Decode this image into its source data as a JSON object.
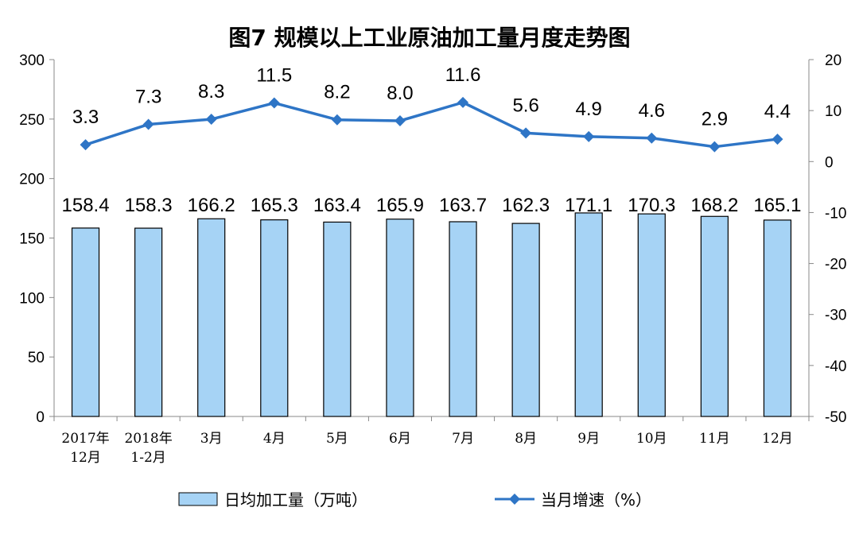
{
  "chart_data": {
    "type": "bar+line",
    "title": "图7  规模以上工业原油加工量月度走势图",
    "categories": [
      [
        "2017年",
        "12月"
      ],
      [
        "2018年",
        "1-2月"
      ],
      [
        "3月"
      ],
      [
        "4月"
      ],
      [
        "5月"
      ],
      [
        "6月"
      ],
      [
        "7月"
      ],
      [
        "8月"
      ],
      [
        "9月"
      ],
      [
        "10月"
      ],
      [
        "11月"
      ],
      [
        "12月"
      ]
    ],
    "series": [
      {
        "name": "日均加工量（万吨）",
        "type": "bar",
        "axis": "left",
        "color": "#a6d3f5",
        "values": [
          158.4,
          158.3,
          166.2,
          165.3,
          163.4,
          165.9,
          163.7,
          162.3,
          171.1,
          170.3,
          168.2,
          165.1
        ]
      },
      {
        "name": "当月增速（%）",
        "type": "line",
        "axis": "right",
        "color": "#2e75c6",
        "values": [
          3.3,
          7.3,
          8.3,
          11.5,
          8.2,
          8.0,
          11.6,
          5.6,
          4.9,
          4.6,
          2.9,
          4.4
        ]
      }
    ],
    "y_left": {
      "min": 0,
      "max": 300,
      "ticks": [
        "0",
        "50",
        "100",
        "150",
        "200",
        "250",
        "300"
      ]
    },
    "y_right": {
      "min": -50,
      "max": 20,
      "ticks": [
        "-50",
        "-40",
        "-30",
        "-20",
        "-10",
        "0",
        "10",
        "20"
      ]
    },
    "bar_labels": [
      "158.4",
      "158.3",
      "166.2",
      "165.3",
      "163.4",
      "165.9",
      "163.7",
      "162.3",
      "171.1",
      "170.3",
      "168.2",
      "165.1"
    ],
    "line_labels": [
      "3.3",
      "7.3",
      "8.3",
      "11.5",
      "8.2",
      "8.0",
      "11.6",
      "5.6",
      "4.9",
      "4.6",
      "2.9",
      "4.4"
    ],
    "legend_position": "bottom",
    "grid": false
  }
}
